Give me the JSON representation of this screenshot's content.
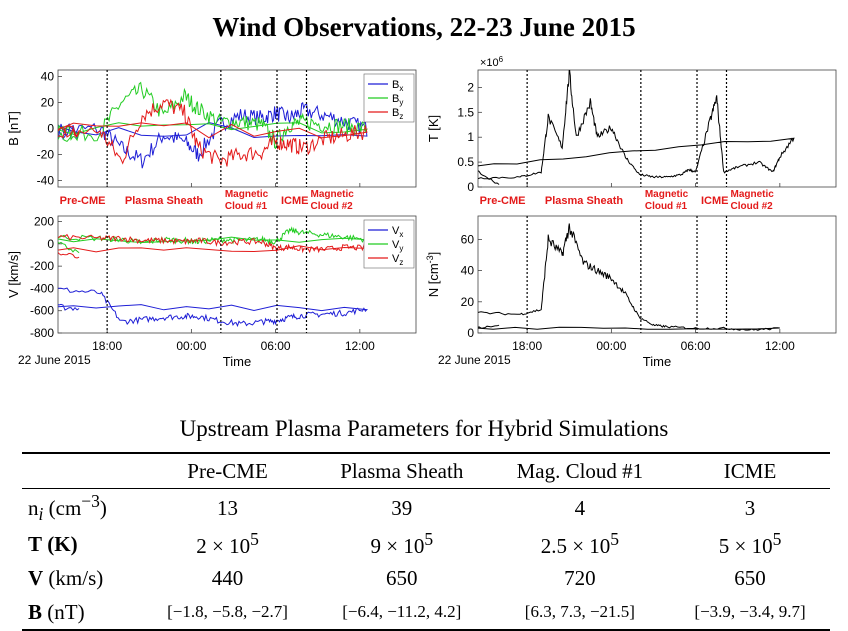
{
  "figure": {
    "title": "Wind Observations, 22-23 June 2015",
    "date_label": "22 June 2015",
    "time_axis_label": "Time",
    "time_ticks": [
      "18:00",
      "00:00",
      "06:00",
      "12:00"
    ],
    "regions": [
      "Pre-CME",
      "Plasma Sheath",
      "Magnetic\nCloud #1",
      "ICME",
      "Magnetic\nCloud #2"
    ],
    "colors": {
      "x": "#1f1fd6",
      "y": "#22cc22",
      "z": "#e31a1a",
      "region_text": "#e31a1a",
      "line": "#000000"
    }
  },
  "chart_data": [
    {
      "type": "line",
      "panel": "B",
      "ylabel": "B [nT]",
      "ylim": [
        -45,
        45
      ],
      "yticks": [
        "40",
        "20",
        "0",
        "-20",
        "-40"
      ],
      "x_hours": [
        14.5,
        17.5,
        19.0,
        20.5,
        22.0,
        23.5,
        0.5,
        2.0,
        3.5,
        5.0,
        6.0,
        7.0,
        8.0,
        9.5,
        11.0,
        12.5,
        14.0,
        16.0
      ],
      "series": [
        {
          "name": "B",
          "sub": "x",
          "color_key": "x",
          "values": [
            -2,
            0,
            -15,
            -25,
            -5,
            -10,
            -20,
            3,
            10,
            8,
            12,
            8,
            14,
            10,
            5,
            0,
            -2,
            -3
          ]
        },
        {
          "name": "B",
          "sub": "y",
          "color_key": "y",
          "values": [
            -5,
            -3,
            20,
            30,
            10,
            25,
            15,
            5,
            5,
            3,
            -10,
            3,
            5,
            3,
            2,
            0,
            -2,
            -3
          ]
        },
        {
          "name": "B",
          "sub": "z",
          "color_key": "z",
          "values": [
            -3,
            -2,
            -25,
            10,
            20,
            12,
            -15,
            -25,
            -20,
            -18,
            -10,
            -12,
            -15,
            -8,
            -5,
            -2,
            0,
            -3
          ]
        }
      ]
    },
    {
      "type": "line",
      "panel": "V",
      "ylabel": "V [km/s]",
      "ylim": [
        -800,
        250
      ],
      "yticks": [
        "200",
        "0",
        "-200",
        "-400",
        "-600",
        "-800"
      ],
      "x_hours": [
        14.5,
        17.5,
        19.0,
        20.5,
        22.0,
        23.5,
        0.5,
        2.0,
        3.5,
        5.0,
        6.0,
        7.0,
        8.0,
        9.5,
        11.0,
        12.5,
        14.0,
        16.0
      ],
      "series": [
        {
          "name": "V",
          "sub": "x",
          "color_key": "x",
          "values": [
            -410,
            -440,
            -700,
            -680,
            -660,
            -650,
            -650,
            -690,
            -720,
            -700,
            -690,
            -660,
            -640,
            -630,
            -620,
            -580,
            -560,
            -580
          ]
        },
        {
          "name": "V",
          "sub": "y",
          "color_key": "y",
          "values": [
            60,
            50,
            40,
            10,
            40,
            30,
            20,
            40,
            30,
            40,
            20,
            120,
            100,
            80,
            60,
            40,
            30,
            -80
          ]
        },
        {
          "name": "V",
          "sub": "z",
          "color_key": "z",
          "values": [
            60,
            50,
            50,
            30,
            30,
            20,
            30,
            10,
            20,
            20,
            -40,
            -30,
            -50,
            -50,
            -30,
            -40,
            -50,
            -120
          ]
        }
      ]
    },
    {
      "type": "line",
      "panel": "T",
      "ylabel": "T [K]",
      "ylim": [
        0,
        2.35
      ],
      "yticks": [
        "2",
        "1.5",
        "1",
        "0.5",
        "0"
      ],
      "scale_note": "×10^6",
      "x_hours": [
        14.5,
        17.5,
        19.0,
        19.5,
        20.5,
        21.0,
        21.5,
        22.5,
        23.0,
        0.0,
        1.0,
        2.0,
        3.0,
        4.0,
        5.0,
        5.5,
        6.0,
        7.0,
        7.5,
        8.0,
        9.0,
        10.5,
        11.5,
        12.0,
        13.0,
        14.0,
        16.0
      ],
      "series": [
        {
          "name": "T",
          "values": [
            0.18,
            0.2,
            0.3,
            1.4,
            0.8,
            2.3,
            1.0,
            1.7,
            1.0,
            1.2,
            0.6,
            0.25,
            0.2,
            0.2,
            0.25,
            0.35,
            0.3,
            1.3,
            1.8,
            0.3,
            0.4,
            0.5,
            0.3,
            0.6,
            1.0,
            0.4,
            0.05
          ]
        }
      ]
    },
    {
      "type": "line",
      "panel": "N",
      "ylabel": "N [cm^-3]",
      "ylim": [
        0,
        75
      ],
      "yticks": [
        "60",
        "40",
        "20",
        "0"
      ],
      "x_hours": [
        14.5,
        17.5,
        19.0,
        19.5,
        20.5,
        21.0,
        22.0,
        23.0,
        0.0,
        1.0,
        2.0,
        3.0,
        4.0,
        6.0,
        8.0,
        10.0,
        12.0,
        14.0,
        16.0
      ],
      "series": [
        {
          "name": "N",
          "values": [
            13,
            12,
            15,
            60,
            50,
            68,
            45,
            40,
            35,
            25,
            10,
            5,
            4,
            3,
            3,
            2,
            3,
            3,
            5
          ]
        }
      ]
    }
  ],
  "table": {
    "title": "Upstream Plasma Parameters for Hybrid Simulations",
    "columns": [
      "Pre-CME",
      "Plasma Sheath",
      "Mag. Cloud #1",
      "ICME"
    ],
    "rows": [
      {
        "label_main": "n",
        "label_sub": "i",
        "label_unit": "(cm",
        "label_exp": "−3",
        "label_end": ")",
        "values": [
          "13",
          "39",
          "4",
          "3"
        ]
      },
      {
        "label_main": "T",
        "label_unit": "(K)",
        "values": [
          "2 × 10",
          "9 × 10",
          "2.5 × 10",
          "5 × 10"
        ],
        "exp": "5"
      },
      {
        "label_main": "V",
        "label_unit": "(km/s)",
        "values": [
          "440",
          "650",
          "720",
          "650"
        ]
      },
      {
        "label_main": "B",
        "label_unit": "(nT)",
        "values": [
          "[−1.8, −5.8, −2.7]",
          "[−6.4, −11.2, 4.2]",
          "[6.3, 7.3, −21.5]",
          "[−3.9, −3.4, 9.7]"
        ]
      }
    ]
  }
}
